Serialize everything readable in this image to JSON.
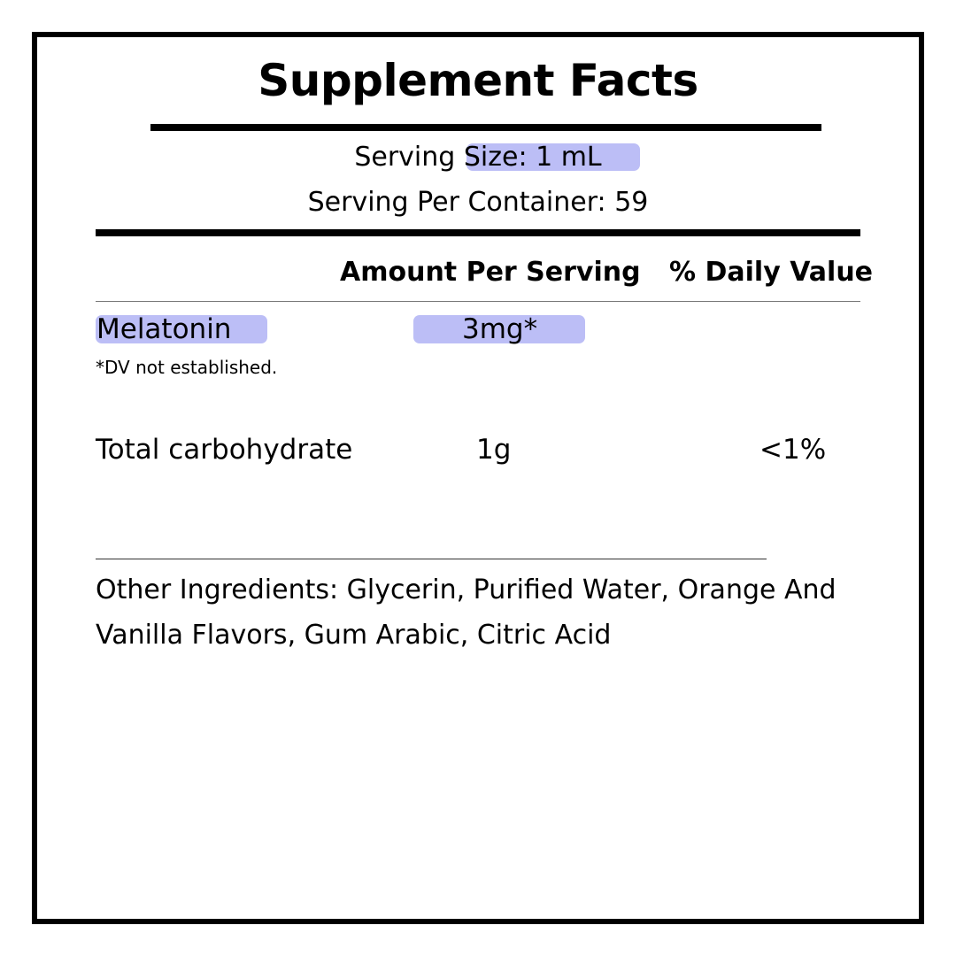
{
  "title": "Supplement Facts",
  "serving": {
    "prefix": "Serving ",
    "size": "Size: 1 mL",
    "per_container": "Serving Per Container: 59"
  },
  "table": {
    "headers": {
      "amount": "Amount Per Serving",
      "daily_value": "% Daily Value"
    },
    "rows": [
      {
        "name": "Melatonin",
        "amount": "3mg*",
        "daily_value": "",
        "note": "*DV not established."
      },
      {
        "name": "Total carbohydrate",
        "amount": "1g",
        "daily_value": "<1%"
      }
    ]
  },
  "other_ingredients": "Other Ingredients: Glycerin, Purified Water, Orange And Vanilla Flavors, Gum Arabic, Citric Acid",
  "colors": {
    "highlight": "#bcbef6",
    "border": "#000000",
    "divider": "#777777"
  }
}
